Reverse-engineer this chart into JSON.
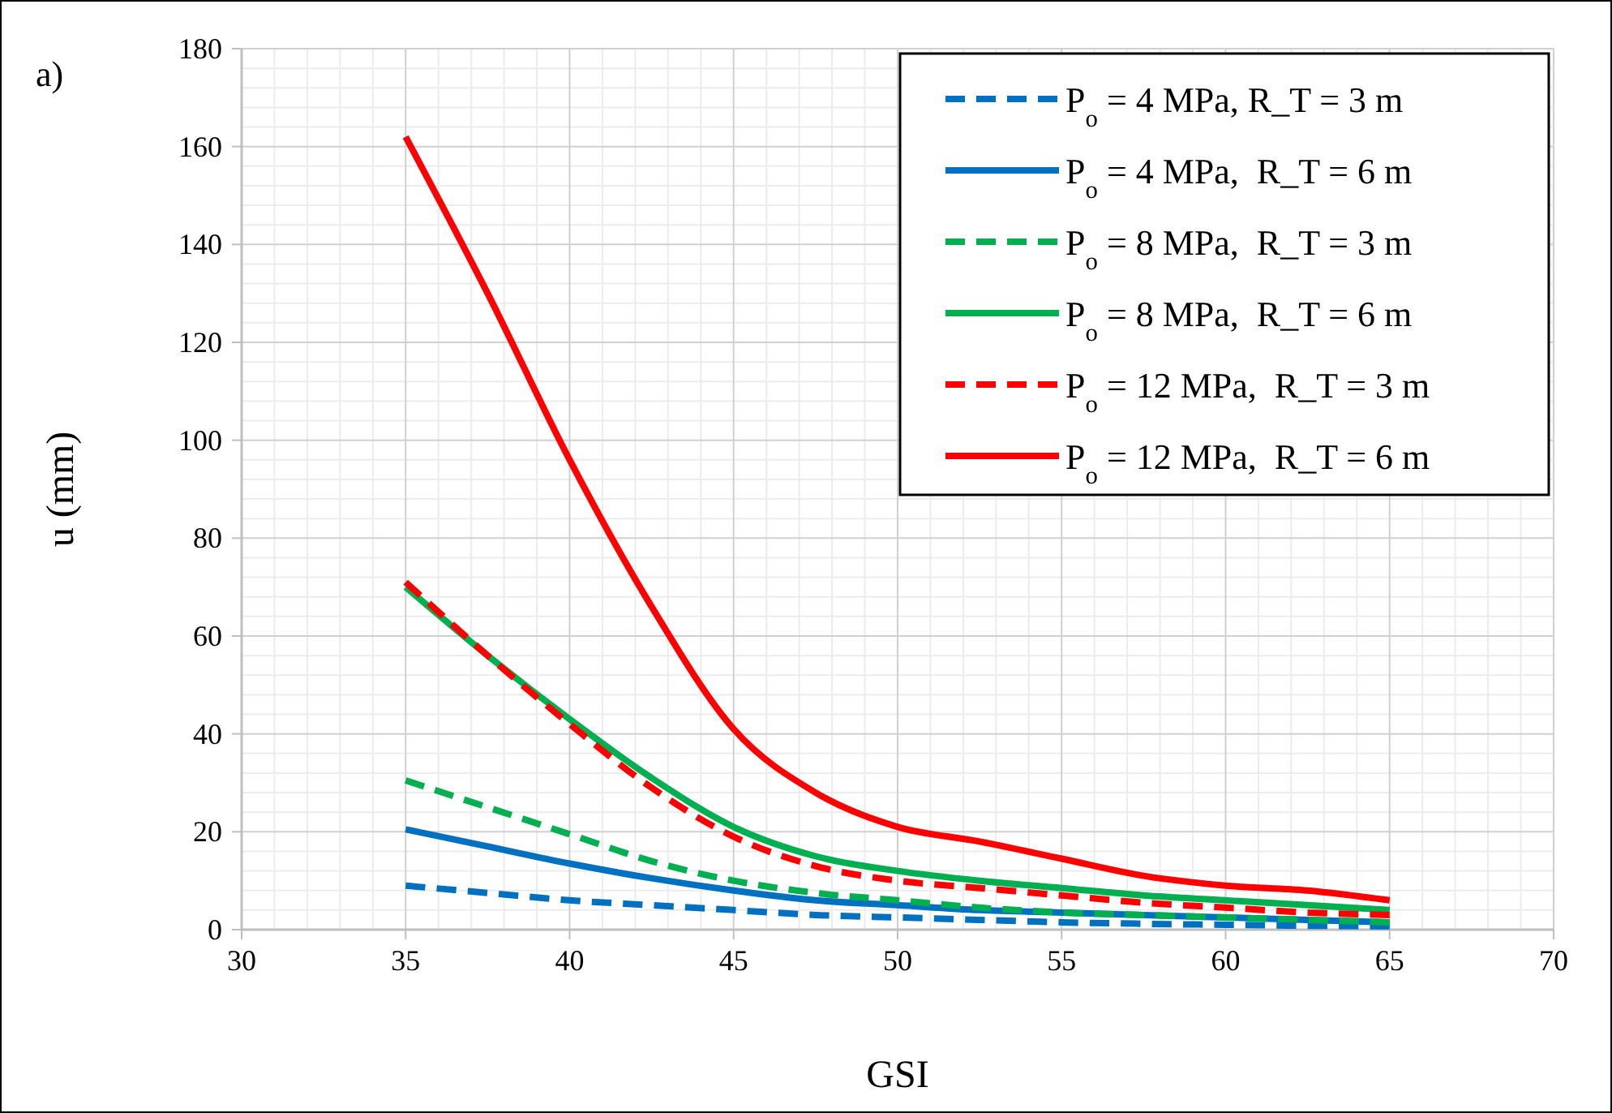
{
  "chart_data": {
    "type": "line",
    "xlabel": "GSI",
    "ylabel": "u (mm)",
    "annotations": [
      "a)"
    ],
    "x": [
      35,
      37.5,
      40,
      42.5,
      45,
      47.5,
      50,
      52.5,
      55,
      57.5,
      60,
      62.5,
      65
    ],
    "xlim": [
      30,
      70
    ],
    "xticks": [
      30,
      35,
      40,
      45,
      50,
      55,
      60,
      65,
      70
    ],
    "ylim": [
      0,
      180
    ],
    "yticks": [
      0,
      20,
      40,
      60,
      80,
      100,
      120,
      140,
      160,
      180
    ],
    "grid": true,
    "legend": "top right",
    "series": [
      {
        "name": "P$_{o}$ = 4 MPa, R_T = 3 m",
        "color": "#0070c0",
        "line_style": "dashed",
        "values": [
          9,
          7.5,
          6,
          5,
          4,
          3,
          2.5,
          2,
          1.5,
          1.2,
          1,
          0.8,
          0.7
        ]
      },
      {
        "name": "P$_{o}$ = 4 MPa,  R_T = 6 m",
        "color": "#0070c0",
        "line_style": "solid",
        "values": [
          20.5,
          17,
          13.5,
          10.5,
          8,
          6,
          5,
          4,
          3.5,
          3,
          2.5,
          2,
          1.5
        ]
      },
      {
        "name": "P$_{o}$ = 8 MPa,  R_T = 3 m",
        "color": "#00b050",
        "line_style": "dashed",
        "values": [
          30.5,
          25,
          19.5,
          14,
          10,
          7.5,
          6,
          4.5,
          3.5,
          3,
          2.5,
          2,
          1.5
        ]
      },
      {
        "name": "P$_{o}$ = 8 MPa,  R_T = 6 m",
        "color": "#00b050",
        "line_style": "solid",
        "values": [
          70,
          56,
          43,
          31,
          21,
          15,
          12,
          10,
          8.5,
          7,
          6,
          5,
          4
        ]
      },
      {
        "name": "P$_{o}$ = 12 MPa,  R_T = 3 m",
        "color": "#ff0000",
        "line_style": "dashed",
        "values": [
          71,
          56,
          42,
          29,
          19,
          13,
          10,
          8.5,
          7,
          5.5,
          4.5,
          3.5,
          3
        ]
      },
      {
        "name": "P$_{o}$ = 12 MPa,  R_T = 6 m",
        "color": "#ff0000",
        "line_style": "solid",
        "values": [
          162,
          130,
          96,
          66,
          41,
          28,
          21,
          18,
          14.5,
          11,
          9,
          8,
          6
        ]
      }
    ]
  }
}
